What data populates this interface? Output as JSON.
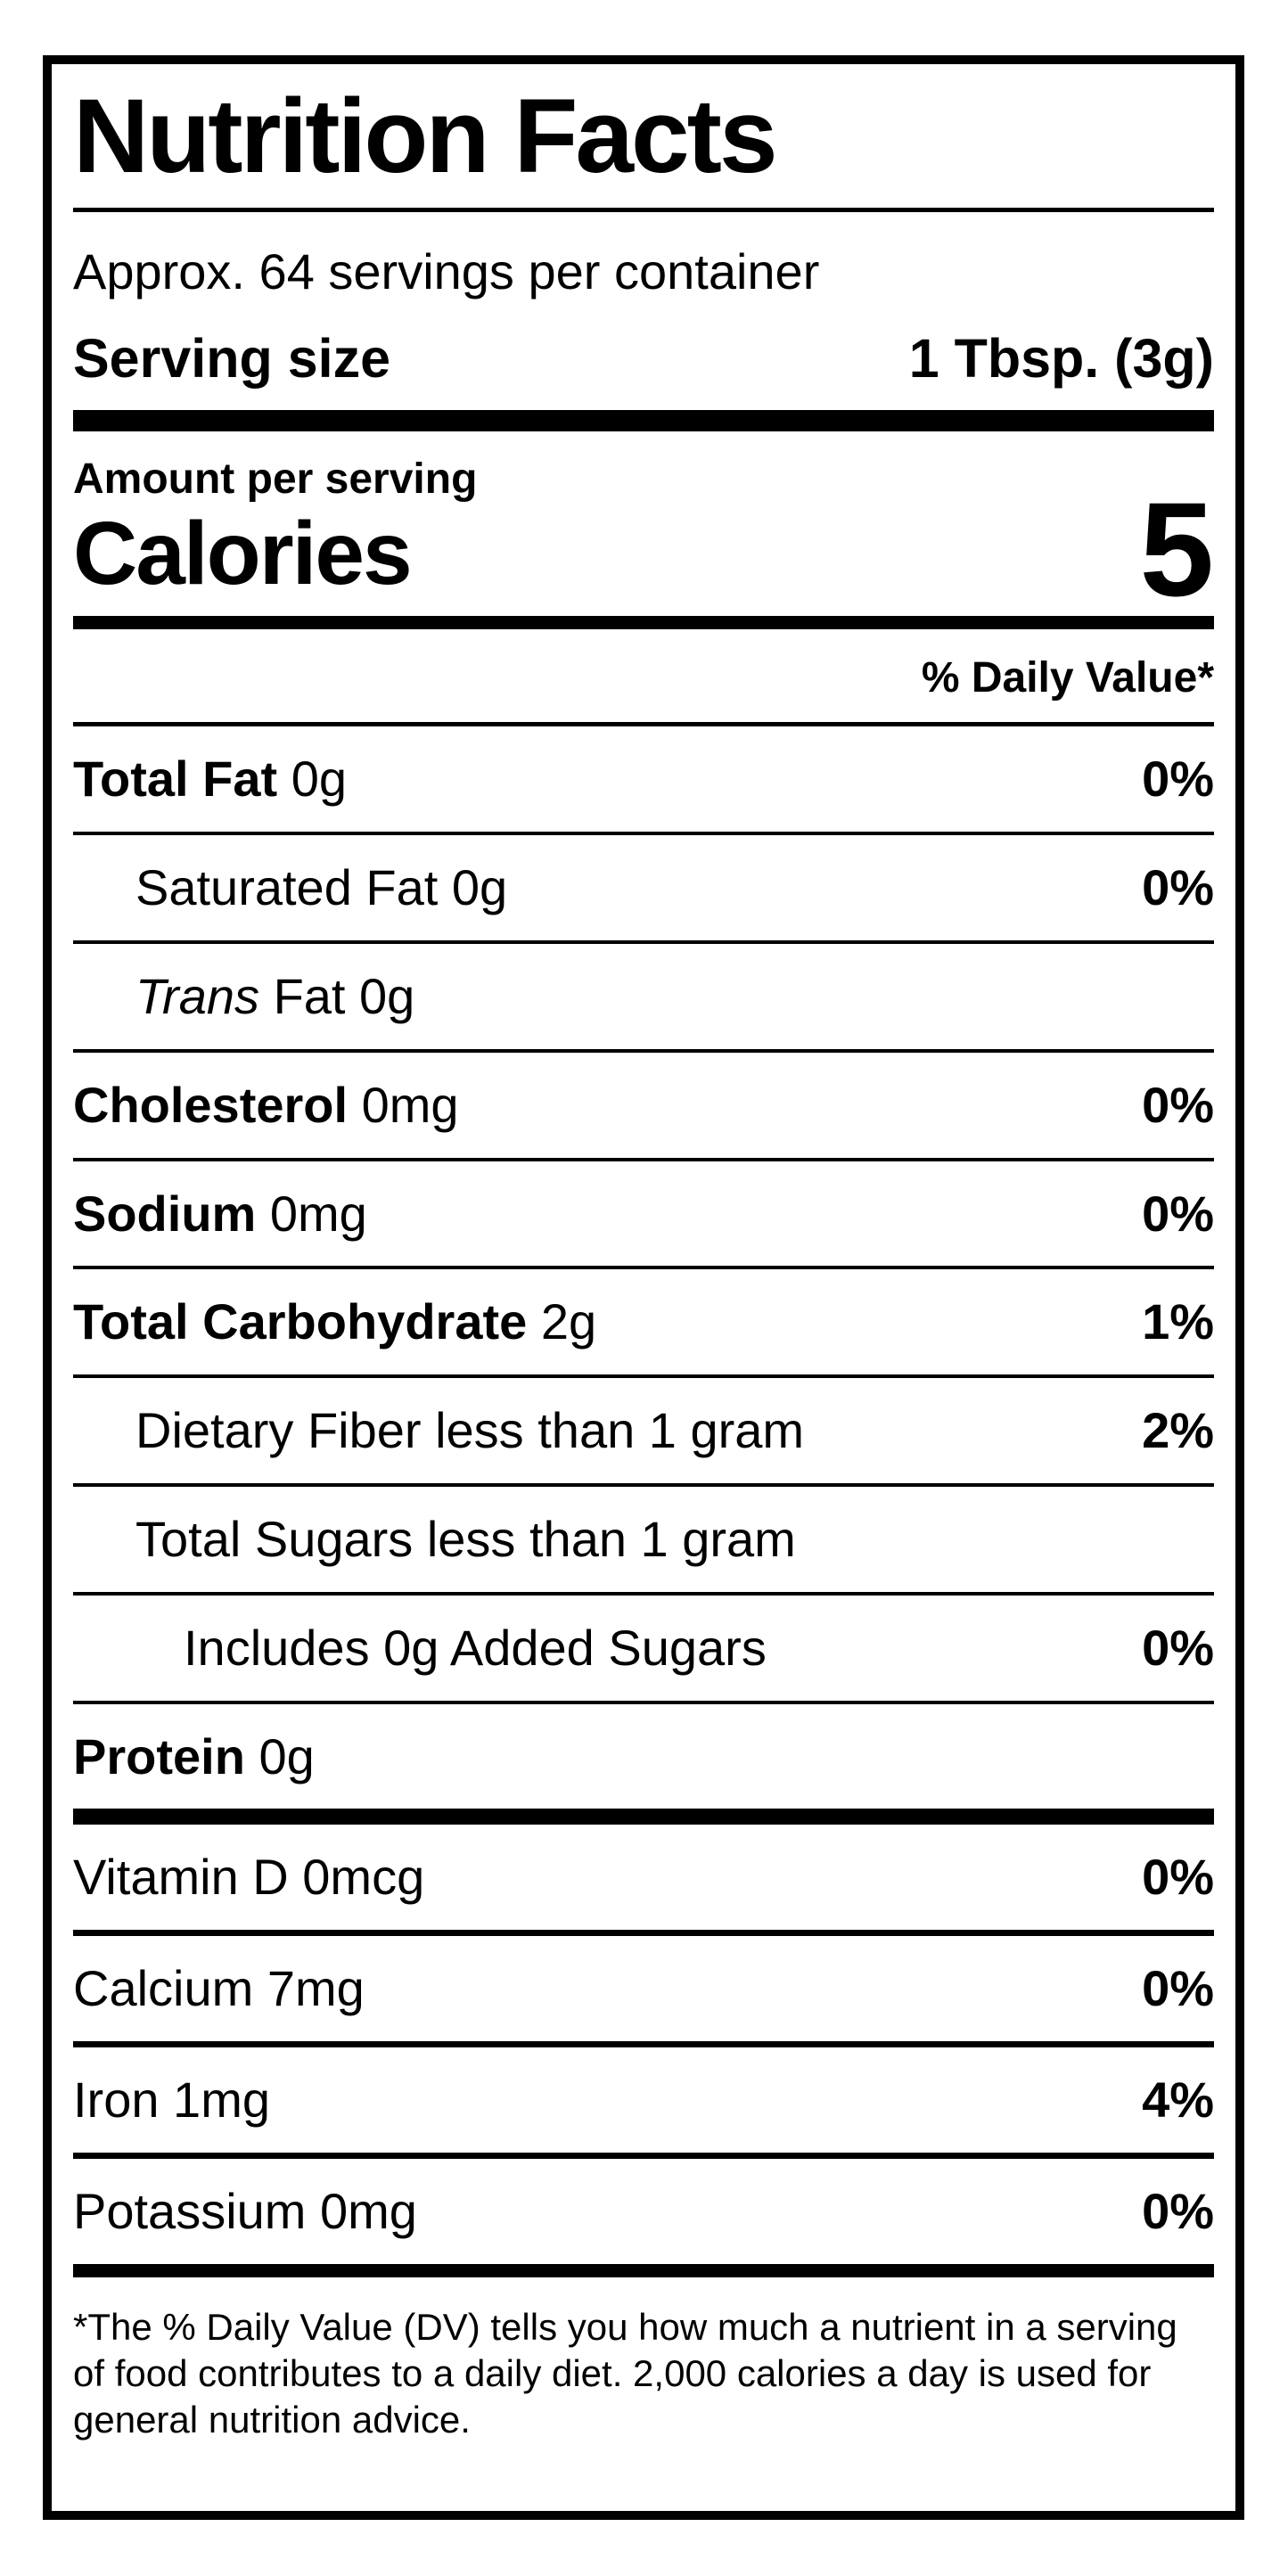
{
  "label": {
    "title": "Nutrition Facts",
    "servings_per_container": "Approx. 64 servings per container",
    "serving_size_label": "Serving size",
    "serving_size_value": "1 Tbsp. (3g)",
    "amount_per_serving": "Amount per serving",
    "calories_label": "Calories",
    "calories_value": "5",
    "daily_value_header": "% Daily Value*",
    "nutrients": [
      {
        "name": "Total Fat",
        "amount": "0g",
        "dv": "0%"
      },
      {
        "name": "Saturated Fat",
        "amount": "0g",
        "dv": "0%"
      },
      {
        "name": "Trans",
        "amount": "Fat 0g",
        "dv": ""
      },
      {
        "name": "Cholesterol",
        "amount": "0mg",
        "dv": "0%"
      },
      {
        "name": "Sodium",
        "amount": "0mg",
        "dv": "0%"
      },
      {
        "name": "Total Carbohydrate",
        "amount": "2g",
        "dv": "1%"
      },
      {
        "name": "Dietary Fiber",
        "amount": "less than 1 gram",
        "dv": "2%"
      },
      {
        "name": "Total Sugars",
        "amount": "less than 1 gram",
        "dv": ""
      },
      {
        "name": "Includes 0g Added Sugars",
        "amount": "",
        "dv": "0%"
      },
      {
        "name": "Protein",
        "amount": "0g",
        "dv": ""
      }
    ],
    "vitamins": [
      {
        "name": "Vitamin D 0mcg",
        "dv": "0%"
      },
      {
        "name": "Calcium 7mg",
        "dv": "0%"
      },
      {
        "name": "Iron 1mg",
        "dv": "4%"
      },
      {
        "name": "Potassium 0mg",
        "dv": "0%"
      }
    ],
    "footnote_lines": [
      "*The % Daily Value (DV) tells you how much a nutrient in a serving",
      "of food contributes to a daily diet. 2,000 calories a day is used for",
      "general nutrition advice."
    ]
  }
}
